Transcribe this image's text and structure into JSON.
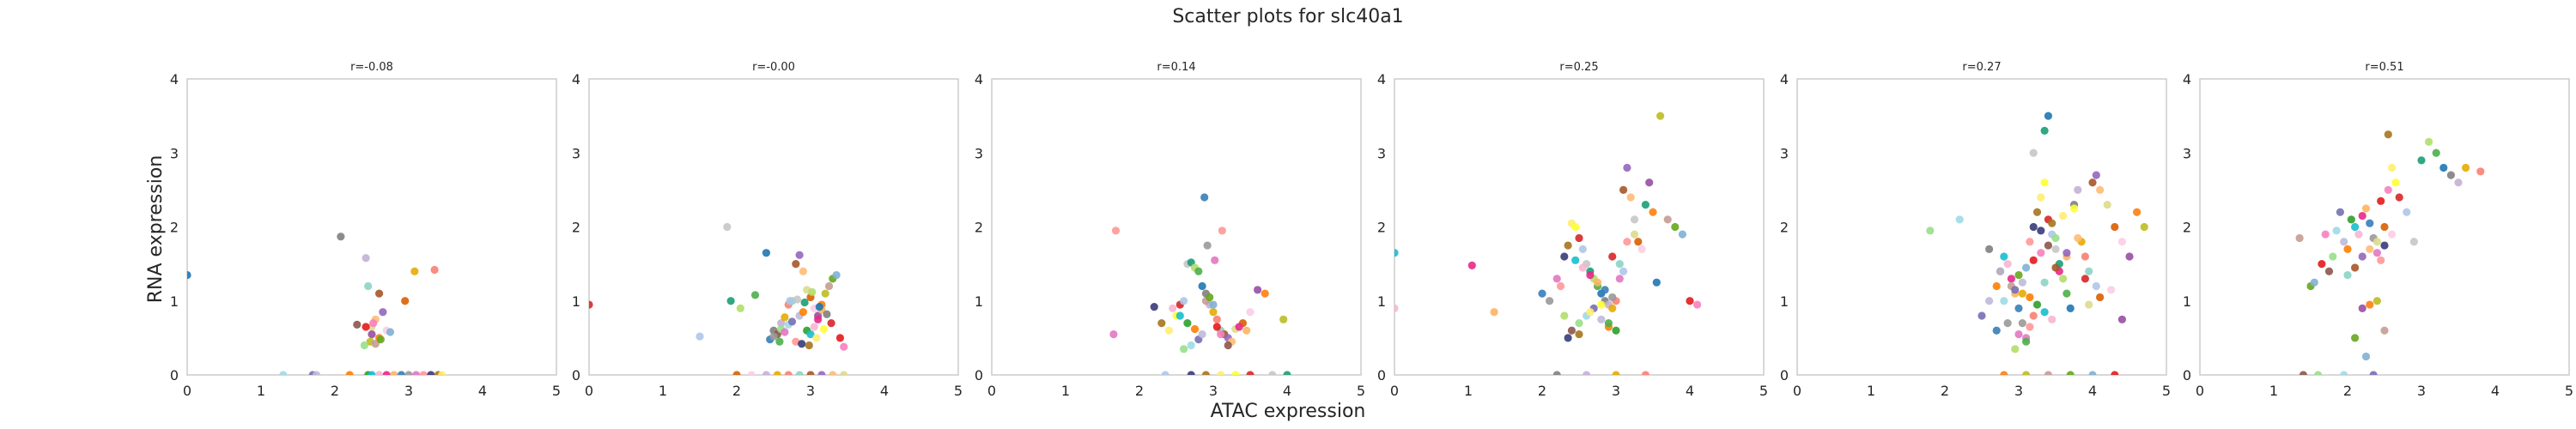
{
  "figure": {
    "suptitle": "Scatter plots for slc40a1",
    "xlabel": "ATAC expression",
    "ylabel": "RNA expression"
  },
  "colors": [
    "#1f77b4",
    "#ff7f0e",
    "#2ca02c",
    "#d62728",
    "#9467bd",
    "#8c564b",
    "#e377c2",
    "#7f7f7f",
    "#bcbd22",
    "#17becf",
    "#aec7e8",
    "#ffbb78",
    "#98df8a",
    "#ff9896",
    "#c5b0d5",
    "#c49c94",
    "#f7b6d2",
    "#c7c7c7",
    "#dbdb8d",
    "#9edae5",
    "#393b79",
    "#e6ab02",
    "#66a61e",
    "#e7298a",
    "#1b9e77",
    "#d95f02",
    "#7570b3",
    "#a6761d",
    "#fb8072",
    "#80b1d3",
    "#fdb462",
    "#b3de69",
    "#fccde5",
    "#bebada",
    "#ffed6f",
    "#8dd3c7",
    "#e41a1c",
    "#377eb8",
    "#4daf4a",
    "#984ea3",
    "#ff7f00",
    "#ffff33",
    "#a65628",
    "#f781bf",
    "#999999"
  ],
  "chart_data": [
    {
      "type": "scatter",
      "title": "r=-0.08",
      "xlim": [
        0,
        5
      ],
      "ylim": [
        0,
        4
      ],
      "xticks": [
        "0",
        "1",
        "2",
        "3",
        "4",
        "5"
      ],
      "yticks": [
        "0",
        "1",
        "2",
        "3",
        "4"
      ],
      "grid": false,
      "x": [
        0.0,
        2.08,
        2.42,
        3.08,
        3.35,
        2.45,
        2.6,
        2.65,
        2.55,
        2.5,
        2.95,
        2.7,
        2.5,
        2.6,
        2.48,
        2.55,
        2.62,
        2.75,
        2.42,
        2.52,
        2.3,
        2.4,
        1.3,
        1.7,
        1.75,
        2.2,
        2.45,
        2.5,
        2.6,
        2.7,
        2.8,
        2.9,
        3.0,
        3.1,
        3.2,
        3.3,
        3.4,
        3.45
      ],
      "y": [
        1.35,
        1.87,
        1.58,
        1.4,
        1.42,
        1.2,
        1.1,
        0.85,
        0.75,
        0.65,
        1.0,
        0.6,
        0.55,
        0.5,
        0.45,
        0.42,
        0.48,
        0.58,
        0.65,
        0.7,
        0.68,
        0.4,
        0.0,
        0.0,
        0.0,
        0.0,
        0.0,
        0.0,
        0.0,
        0.0,
        0.0,
        0.0,
        0.0,
        0.0,
        0.0,
        0.0,
        0.0,
        0.0
      ]
    },
    {
      "type": "scatter",
      "title": "r=-0.00",
      "xlim": [
        0,
        5
      ],
      "ylim": [
        0,
        4
      ],
      "xticks": [
        "0",
        "1",
        "2",
        "3",
        "4",
        "5"
      ],
      "yticks": [
        "0",
        "1",
        "2",
        "3",
        "4"
      ],
      "grid": false,
      "x": [
        0.0,
        1.5,
        1.87,
        1.92,
        2.05,
        2.25,
        2.4,
        2.5,
        2.6,
        2.65,
        2.7,
        2.75,
        2.8,
        2.85,
        2.9,
        2.95,
        3.0,
        3.05,
        3.1,
        3.15,
        3.2,
        3.25,
        3.3,
        3.35,
        3.4,
        3.45,
        2.55,
        2.6,
        2.7,
        2.75,
        2.85,
        2.9,
        2.95,
        3.0,
        3.05,
        3.1,
        3.15,
        2.45,
        2.5,
        2.65,
        2.8,
        2.88,
        2.98,
        3.08,
        3.18,
        3.28,
        2.72,
        2.82,
        2.92,
        3.02,
        2.58,
        3.12,
        3.22,
        2.4,
        2.55,
        2.7,
        2.85,
        3.0,
        3.15,
        3.3,
        3.45,
        2.0,
        2.2
      ],
      "y": [
        0.95,
        0.52,
        2.0,
        1.0,
        0.9,
        1.08,
        1.65,
        0.6,
        0.7,
        0.78,
        0.95,
        1.0,
        1.5,
        1.62,
        1.4,
        1.15,
        1.05,
        0.9,
        0.8,
        0.95,
        1.1,
        1.2,
        1.3,
        1.35,
        0.5,
        0.38,
        0.55,
        0.62,
        0.68,
        0.72,
        0.8,
        0.85,
        0.6,
        0.55,
        0.65,
        0.75,
        0.88,
        0.48,
        0.52,
        0.58,
        0.45,
        0.42,
        0.4,
        0.5,
        0.62,
        0.7,
        1.0,
        1.02,
        0.98,
        1.12,
        0.45,
        0.92,
        0.82,
        0.0,
        0.0,
        0.0,
        0.0,
        0.0,
        0.0,
        0.0,
        0.0,
        0.0,
        0.0
      ]
    },
    {
      "type": "scatter",
      "title": "r=0.14",
      "xlim": [
        0,
        5
      ],
      "ylim": [
        0,
        4
      ],
      "xticks": [
        "0",
        "1",
        "2",
        "3",
        "4",
        "5"
      ],
      "yticks": [
        "0",
        "1",
        "2",
        "3",
        "4"
      ],
      "grid": false,
      "x": [
        1.65,
        1.68,
        2.2,
        2.3,
        2.4,
        2.5,
        2.55,
        2.6,
        2.65,
        2.7,
        2.75,
        2.8,
        2.85,
        2.9,
        2.95,
        3.0,
        3.05,
        3.1,
        3.15,
        3.2,
        3.25,
        3.3,
        3.4,
        3.5,
        3.6,
        3.7,
        3.95,
        2.9,
        2.95,
        3.0,
        3.05,
        3.1,
        3.2,
        2.6,
        2.7,
        2.8,
        2.85,
        2.75,
        2.65,
        2.55,
        2.45,
        3.35,
        3.45,
        2.88,
        2.92,
        3.02,
        3.12,
        2.7,
        2.9,
        3.1,
        3.3,
        3.5,
        2.35,
        3.8,
        4.0
      ],
      "y": [
        0.55,
        1.95,
        0.92,
        0.7,
        0.6,
        0.8,
        0.95,
        1.0,
        1.5,
        1.52,
        1.45,
        1.4,
        1.2,
        1.1,
        0.95,
        0.85,
        0.75,
        0.6,
        0.55,
        0.5,
        0.45,
        0.62,
        0.7,
        0.85,
        1.15,
        1.1,
        0.75,
        1.0,
        1.05,
        0.95,
        0.65,
        0.55,
        0.4,
        0.35,
        0.4,
        0.48,
        0.55,
        0.62,
        0.7,
        0.8,
        0.9,
        0.65,
        0.6,
        2.4,
        1.75,
        1.55,
        1.95,
        0.0,
        0.0,
        0.0,
        0.0,
        0.0,
        0.0,
        0.0,
        0.0
      ]
    },
    {
      "type": "scatter",
      "title": "r=0.25",
      "xlim": [
        0,
        5
      ],
      "ylim": [
        0,
        4
      ],
      "xticks": [
        "0",
        "1",
        "2",
        "3",
        "4",
        "5"
      ],
      "yticks": [
        "0",
        "1",
        "2",
        "3",
        "4"
      ],
      "grid": false,
      "x": [
        0.0,
        0.0,
        1.05,
        1.35,
        2.0,
        2.1,
        2.2,
        2.25,
        2.3,
        2.35,
        2.4,
        2.45,
        2.5,
        2.55,
        2.6,
        2.65,
        2.7,
        2.75,
        2.8,
        2.85,
        2.9,
        2.95,
        3.0,
        3.05,
        3.1,
        3.15,
        3.2,
        3.25,
        3.3,
        3.35,
        3.45,
        3.5,
        3.6,
        3.7,
        3.8,
        3.9,
        4.0,
        4.1,
        2.4,
        2.5,
        2.6,
        2.7,
        2.8,
        2.9,
        3.0,
        2.45,
        2.55,
        2.65,
        2.75,
        2.85,
        2.95,
        3.05,
        3.15,
        2.35,
        2.5,
        2.65,
        2.8,
        2.95,
        3.1,
        3.25,
        3.4,
        2.3,
        2.9,
        3.55,
        2.2,
        2.6,
        3.0,
        3.4
      ],
      "y": [
        1.65,
        0.9,
        1.48,
        0.85,
        1.1,
        1.0,
        1.3,
        1.2,
        1.6,
        1.75,
        2.05,
        2.0,
        1.85,
        1.7,
        1.5,
        1.4,
        1.3,
        1.2,
        1.1,
        1.0,
        0.95,
        0.9,
        1.0,
        1.5,
        2.5,
        2.8,
        2.4,
        1.9,
        1.8,
        1.7,
        2.6,
        2.2,
        3.5,
        2.1,
        2.0,
        1.9,
        1.0,
        0.95,
        0.6,
        0.7,
        0.8,
        0.9,
        0.75,
        0.65,
        0.6,
        1.55,
        1.45,
        1.35,
        1.25,
        1.15,
        1.05,
        1.3,
        1.8,
        0.5,
        0.55,
        0.85,
        0.95,
        1.6,
        1.4,
        2.1,
        2.3,
        0.8,
        0.7,
        1.25,
        0.0,
        0.0,
        0.0,
        0.0
      ]
    },
    {
      "type": "scatter",
      "title": "r=0.27",
      "xlim": [
        0,
        5
      ],
      "ylim": [
        0,
        4
      ],
      "xticks": [
        "0",
        "1",
        "2",
        "3",
        "4",
        "5"
      ],
      "yticks": [
        "0",
        "1",
        "2",
        "3",
        "4"
      ],
      "grid": false,
      "x": [
        1.8,
        2.2,
        2.5,
        2.6,
        2.7,
        2.75,
        2.8,
        2.85,
        2.9,
        2.95,
        3.0,
        3.05,
        3.1,
        3.15,
        3.2,
        3.25,
        3.3,
        3.35,
        3.4,
        3.45,
        3.5,
        3.55,
        3.6,
        3.65,
        3.7,
        3.75,
        3.8,
        3.85,
        3.9,
        3.95,
        4.0,
        4.05,
        4.1,
        4.2,
        4.3,
        4.4,
        4.5,
        4.6,
        4.7,
        2.9,
        3.0,
        3.1,
        3.2,
        3.3,
        3.4,
        3.5,
        2.8,
        2.95,
        3.05,
        3.15,
        3.25,
        3.35,
        3.45,
        3.55,
        3.65,
        2.7,
        2.85,
        3.0,
        3.15,
        3.3,
        3.45,
        3.6,
        3.75,
        3.9,
        4.05,
        3.2,
        3.35,
        2.95,
        3.1,
        3.4,
        2.6,
        2.75,
        3.05,
        3.2,
        3.35,
        3.5,
        3.65,
        3.8,
        3.95,
        4.1,
        4.25,
        4.4,
        2.8,
        3.1,
        3.4,
        3.7,
        4.0,
        4.3
      ],
      "y": [
        1.95,
        2.1,
        0.8,
        1.0,
        1.2,
        1.4,
        1.6,
        1.5,
        1.3,
        1.1,
        0.9,
        0.7,
        0.5,
        1.8,
        2.0,
        2.2,
        2.4,
        2.6,
        2.1,
        1.9,
        1.7,
        1.5,
        1.3,
        1.1,
        0.9,
        2.3,
        2.5,
        1.8,
        1.6,
        1.4,
        2.6,
        2.7,
        2.5,
        2.3,
        2.0,
        1.8,
        1.6,
        2.2,
        2.0,
        1.2,
        1.35,
        1.45,
        1.55,
        1.65,
        1.75,
        1.85,
        1.0,
        1.15,
        1.25,
        1.05,
        0.95,
        0.85,
        0.75,
        1.4,
        1.6,
        0.6,
        0.7,
        0.55,
        0.65,
        1.95,
        2.05,
        2.15,
        2.25,
        1.3,
        1.2,
        3.0,
        3.3,
        0.35,
        0.45,
        3.5,
        1.7,
        1.4,
        1.1,
        0.8,
        1.25,
        1.45,
        1.65,
        1.85,
        0.95,
        1.05,
        1.15,
        0.75,
        0.0,
        0.0,
        0.0,
        0.0,
        0.0,
        0.0
      ]
    },
    {
      "type": "scatter",
      "title": "r=0.51",
      "xlim": [
        0,
        5
      ],
      "ylim": [
        0,
        4
      ],
      "xticks": [
        "0",
        "1",
        "2",
        "3",
        "4",
        "5"
      ],
      "yticks": [
        "0",
        "1",
        "2",
        "3",
        "4"
      ],
      "grid": false,
      "x": [
        1.35,
        1.5,
        1.55,
        1.65,
        1.7,
        1.75,
        1.8,
        1.85,
        1.9,
        1.95,
        2.0,
        2.05,
        2.1,
        2.15,
        2.2,
        2.25,
        2.3,
        2.35,
        2.4,
        2.45,
        2.5,
        2.55,
        2.6,
        2.65,
        2.7,
        2.8,
        2.9,
        3.0,
        3.1,
        3.2,
        3.3,
        3.4,
        3.5,
        3.6,
        3.8,
        2.0,
        2.1,
        2.2,
        2.3,
        2.4,
        2.5,
        2.6,
        2.2,
        2.3,
        2.4,
        2.5,
        2.1,
        2.25,
        2.45,
        2.55,
        1.4,
        1.6,
        1.95,
        2.35
      ],
      "y": [
        1.85,
        1.2,
        1.25,
        1.5,
        1.9,
        1.4,
        1.6,
        1.95,
        2.2,
        1.8,
        1.7,
        2.1,
        2.0,
        1.9,
        2.15,
        2.25,
        2.05,
        1.85,
        1.65,
        1.55,
        1.75,
        3.25,
        2.8,
        2.6,
        2.4,
        2.2,
        1.8,
        2.9,
        3.15,
        3.0,
        2.8,
        2.7,
        2.6,
        2.8,
        2.75,
        1.35,
        1.45,
        1.6,
        1.7,
        1.8,
        2.0,
        1.9,
        0.9,
        0.95,
        1.0,
        0.6,
        0.5,
        0.25,
        2.35,
        2.5,
        0.0,
        0.0,
        0.0,
        0.0
      ]
    }
  ]
}
